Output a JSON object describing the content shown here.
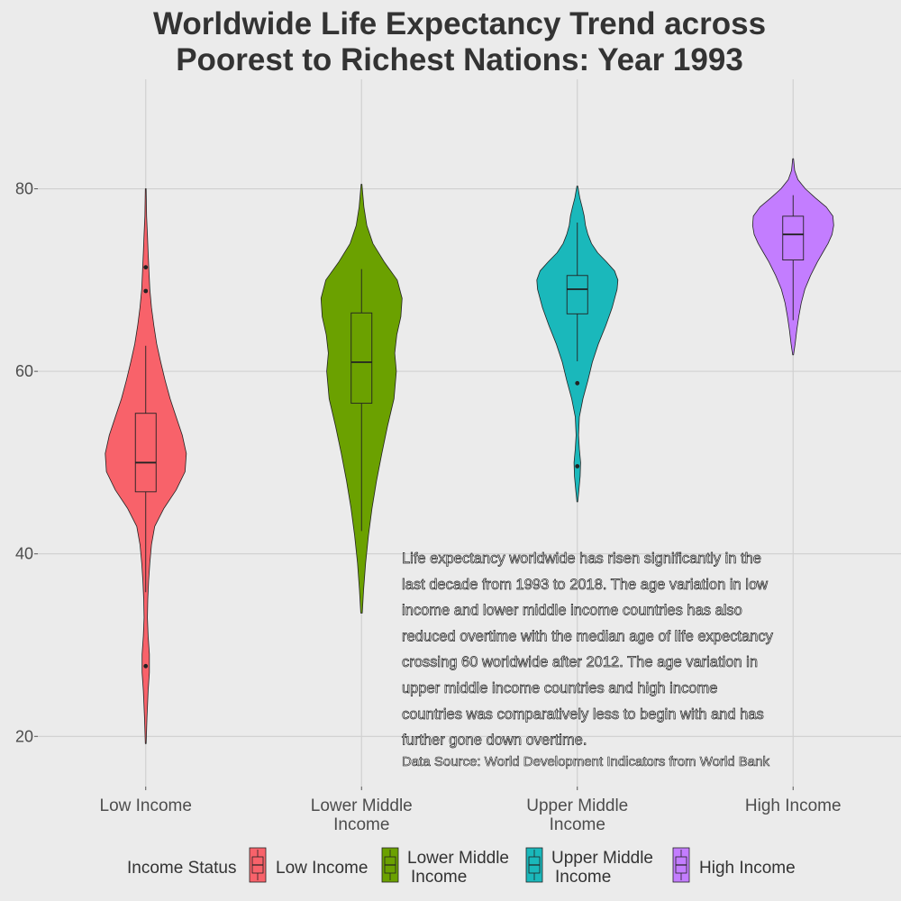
{
  "chart_data": {
    "type": "violin",
    "title": [
      "Worldwide Life Expectancy Trend across",
      "Poorest to Richest Nations: Year 1993"
    ],
    "xlabel": "",
    "ylabel": "",
    "ylim": [
      14.5,
      92
    ],
    "y_ticks": [
      20,
      40,
      60,
      80
    ],
    "categories": [
      {
        "key": "low",
        "label": [
          "Low Income"
        ]
      },
      {
        "key": "lowermid",
        "label": [
          "Lower Middle",
          "Income"
        ]
      },
      {
        "key": "uppermid",
        "label": [
          "Upper Middle",
          "Income"
        ]
      },
      {
        "key": "high",
        "label": [
          "High Income"
        ]
      }
    ],
    "grid": true,
    "series": [
      {
        "key": "low",
        "color": "#f8626a",
        "box": {
          "q1": 46.8,
          "median": 50.0,
          "q3": 55.4,
          "whisker_low": 35.8,
          "whisker_high": 62.8
        },
        "outliers": [
          71.4,
          68.8,
          27.7
        ],
        "density": [
          [
            19.2,
            0.01
          ],
          [
            22,
            0.03
          ],
          [
            25,
            0.06
          ],
          [
            27,
            0.09
          ],
          [
            29,
            0.09
          ],
          [
            31,
            0.06
          ],
          [
            33,
            0.04
          ],
          [
            35,
            0.05
          ],
          [
            37,
            0.07
          ],
          [
            39,
            0.1
          ],
          [
            41,
            0.14
          ],
          [
            43,
            0.22
          ],
          [
            45,
            0.45
          ],
          [
            47,
            0.75
          ],
          [
            49,
            0.97
          ],
          [
            51,
            1.0
          ],
          [
            53,
            0.9
          ],
          [
            55,
            0.75
          ],
          [
            57,
            0.6
          ],
          [
            59,
            0.48
          ],
          [
            61,
            0.37
          ],
          [
            63,
            0.27
          ],
          [
            65,
            0.2
          ],
          [
            67,
            0.14
          ],
          [
            69,
            0.1
          ],
          [
            71,
            0.08
          ],
          [
            73,
            0.06
          ],
          [
            75,
            0.04
          ],
          [
            77,
            0.02
          ],
          [
            80,
            0.01
          ]
        ]
      },
      {
        "key": "lowermid",
        "color": "#6ba100",
        "box": {
          "q1": 56.5,
          "median": 61.0,
          "q3": 66.4,
          "whisker_low": 42.5,
          "whisker_high": 71.2
        },
        "outliers": [],
        "density": [
          [
            33.5,
            0.02
          ],
          [
            36,
            0.05
          ],
          [
            39,
            0.1
          ],
          [
            42,
            0.17
          ],
          [
            45,
            0.26
          ],
          [
            48,
            0.37
          ],
          [
            51,
            0.5
          ],
          [
            54,
            0.64
          ],
          [
            57,
            0.8
          ],
          [
            60,
            0.86
          ],
          [
            62,
            0.82
          ],
          [
            64,
            0.87
          ],
          [
            66,
            0.97
          ],
          [
            68,
            1.0
          ],
          [
            70,
            0.88
          ],
          [
            72,
            0.56
          ],
          [
            74,
            0.28
          ],
          [
            76,
            0.13
          ],
          [
            78,
            0.06
          ],
          [
            80.5,
            0.01
          ]
        ]
      },
      {
        "key": "uppermid",
        "color": "#1ab8bb",
        "box": {
          "q1": 66.3,
          "median": 69.0,
          "q3": 70.5,
          "whisker_low": 61.1,
          "whisker_high": 76.3
        },
        "outliers": [
          58.7,
          49.6
        ],
        "density": [
          [
            45.7,
            0.01
          ],
          [
            47,
            0.04
          ],
          [
            48.5,
            0.07
          ],
          [
            50,
            0.08
          ],
          [
            51.5,
            0.05
          ],
          [
            53,
            0.03
          ],
          [
            55,
            0.05
          ],
          [
            57,
            0.14
          ],
          [
            59,
            0.26
          ],
          [
            61,
            0.37
          ],
          [
            63,
            0.52
          ],
          [
            65,
            0.7
          ],
          [
            67,
            0.86
          ],
          [
            69,
            0.98
          ],
          [
            70,
            1.0
          ],
          [
            71,
            0.92
          ],
          [
            72,
            0.72
          ],
          [
            73,
            0.5
          ],
          [
            74,
            0.35
          ],
          [
            75,
            0.26
          ],
          [
            76,
            0.2
          ],
          [
            77,
            0.17
          ],
          [
            78,
            0.12
          ],
          [
            79,
            0.06
          ],
          [
            80.3,
            0.01
          ]
        ]
      },
      {
        "key": "high",
        "color": "#c37dff",
        "box": {
          "q1": 72.2,
          "median": 75.0,
          "q3": 77.0,
          "whisker_low": 65.6,
          "whisker_high": 79.3
        },
        "outliers": [],
        "density": [
          [
            61.8,
            0.01
          ],
          [
            63,
            0.05
          ],
          [
            64.5,
            0.09
          ],
          [
            66,
            0.14
          ],
          [
            67.5,
            0.2
          ],
          [
            69,
            0.29
          ],
          [
            70.5,
            0.43
          ],
          [
            72,
            0.6
          ],
          [
            73,
            0.73
          ],
          [
            74,
            0.86
          ],
          [
            75,
            0.96
          ],
          [
            76,
            1.0
          ],
          [
            77,
            0.98
          ],
          [
            78,
            0.82
          ],
          [
            79,
            0.55
          ],
          [
            80,
            0.3
          ],
          [
            81,
            0.12
          ],
          [
            82,
            0.04
          ],
          [
            83.3,
            0.01
          ]
        ]
      }
    ],
    "annotation": {
      "lines": [
        "Life expectancy worldwide has risen significantly in the",
        "last decade from 1993 to 2018. The age variation in low",
        "income and lower middle income countries has also",
        "reduced overtime with the median age of life expectancy",
        "crossing 60 worldwide after 2012. The age variation in",
        "upper middle income countries and high income",
        "countries was comparatively less to begin with and has",
        "further gone down overtime."
      ],
      "source": "Data Source: World Development Indicators from World Bank"
    },
    "legend": {
      "position": "bottom",
      "title": "Income Status",
      "items": [
        {
          "key": "low",
          "label": [
            "Low Income"
          ]
        },
        {
          "key": "lowermid",
          "label": [
            "Lower Middle",
            "Income"
          ]
        },
        {
          "key": "uppermid",
          "label": [
            "Upper Middle",
            "Income"
          ]
        },
        {
          "key": "high",
          "label": [
            "High Income"
          ]
        }
      ]
    }
  }
}
